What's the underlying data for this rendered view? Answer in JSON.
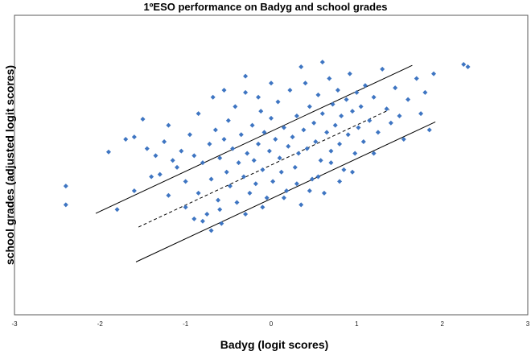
{
  "chart_data": {
    "type": "scatter",
    "title": "1ºESO performance on Badyg and school grades",
    "xlabel": "Badyg (logit scores)",
    "ylabel": "school grades (adjusted logit scores)",
    "xlim": [
      -3,
      3
    ],
    "ylim": [
      -3.2,
      3.2
    ],
    "x_ticks": [
      "-3",
      "-2",
      "-1",
      "0",
      "1",
      "2",
      "3"
    ],
    "y_ticks_shown": false,
    "grid": false,
    "legend": "none",
    "marker": "diamond",
    "marker_color": "#3e75c2",
    "line_color": "#000000",
    "regression_line": {
      "slope": 0.855,
      "intercept": 0.0,
      "x_range": [
        -1.55,
        1.38
      ],
      "style": "dashed"
    },
    "upper_bound_line": {
      "slope": 0.855,
      "intercept": 0.72,
      "x_range": [
        -2.05,
        1.65
      ],
      "style": "solid"
    },
    "lower_bound_line": {
      "slope": 0.855,
      "intercept": -0.72,
      "x_range": [
        -1.58,
        1.92
      ],
      "style": "solid"
    },
    "points": [
      [
        -2.4,
        -0.45
      ],
      [
        -2.4,
        -0.85
      ],
      [
        -1.8,
        -0.95
      ],
      [
        -1.9,
        0.28
      ],
      [
        -1.7,
        0.55
      ],
      [
        -1.6,
        0.6
      ],
      [
        -1.5,
        0.98
      ],
      [
        -1.45,
        0.35
      ],
      [
        -1.35,
        0.2
      ],
      [
        -1.3,
        -0.2
      ],
      [
        -1.25,
        0.5
      ],
      [
        -1.2,
        0.85
      ],
      [
        -1.15,
        0.1
      ],
      [
        -1.1,
        -0.05
      ],
      [
        -1.05,
        0.3
      ],
      [
        -1.0,
        -0.35
      ],
      [
        -0.95,
        0.65
      ],
      [
        -0.9,
        0.2
      ],
      [
        -0.85,
        -0.6
      ],
      [
        -0.85,
        1.1
      ],
      [
        -0.8,
        0.05
      ],
      [
        -0.75,
        -1.05
      ],
      [
        -0.72,
        0.45
      ],
      [
        -0.7,
        -0.3
      ],
      [
        -0.68,
        1.45
      ],
      [
        -0.65,
        0.75
      ],
      [
        -0.62,
        -0.75
      ],
      [
        -0.6,
        0.15
      ],
      [
        -0.58,
        -1.25
      ],
      [
        -0.55,
        0.55
      ],
      [
        -0.52,
        -0.15
      ],
      [
        -0.5,
        0.95
      ],
      [
        -0.48,
        -0.45
      ],
      [
        -0.45,
        0.35
      ],
      [
        -0.42,
        1.25
      ],
      [
        -0.4,
        -0.8
      ],
      [
        -0.38,
        0.05
      ],
      [
        -0.35,
        0.65
      ],
      [
        -0.32,
        -0.25
      ],
      [
        -0.3,
        1.55
      ],
      [
        -0.28,
        0.25
      ],
      [
        -0.25,
        -0.6
      ],
      [
        -0.22,
        0.85
      ],
      [
        -0.2,
        0.1
      ],
      [
        -0.18,
        -0.4
      ],
      [
        -0.15,
        0.45
      ],
      [
        -0.12,
        1.15
      ],
      [
        -0.1,
        -0.1
      ],
      [
        -0.08,
        0.7
      ],
      [
        -0.05,
        -0.7
      ],
      [
        -0.02,
        0.3
      ],
      [
        0.0,
        1.0
      ],
      [
        0.02,
        -0.35
      ],
      [
        0.05,
        0.55
      ],
      [
        0.08,
        1.35
      ],
      [
        0.1,
        0.15
      ],
      [
        0.12,
        -0.15
      ],
      [
        0.15,
        0.8
      ],
      [
        0.18,
        -0.55
      ],
      [
        0.2,
        0.4
      ],
      [
        0.22,
        1.6
      ],
      [
        0.25,
        0.6
      ],
      [
        0.28,
        -0.05
      ],
      [
        0.3,
        1.05
      ],
      [
        0.32,
        0.25
      ],
      [
        0.35,
        -0.85
      ],
      [
        0.38,
        0.75
      ],
      [
        0.4,
        1.75
      ],
      [
        0.42,
        0.35
      ],
      [
        0.45,
        1.25
      ],
      [
        0.48,
        -0.3
      ],
      [
        0.5,
        0.9
      ],
      [
        0.52,
        0.5
      ],
      [
        0.55,
        1.5
      ],
      [
        0.58,
        0.1
      ],
      [
        0.6,
        1.1
      ],
      [
        0.62,
        -0.6
      ],
      [
        0.65,
        0.7
      ],
      [
        0.68,
        1.85
      ],
      [
        0.7,
        0.3
      ],
      [
        0.72,
        1.3
      ],
      [
        0.75,
        0.85
      ],
      [
        0.78,
        1.6
      ],
      [
        0.8,
        0.45
      ],
      [
        0.82,
        1.05
      ],
      [
        0.85,
        -0.1
      ],
      [
        0.88,
        1.4
      ],
      [
        0.9,
        0.65
      ],
      [
        0.92,
        1.95
      ],
      [
        0.95,
        1.15
      ],
      [
        0.98,
        0.25
      ],
      [
        1.0,
        1.55
      ],
      [
        1.02,
        0.8
      ],
      [
        1.05,
        1.25
      ],
      [
        1.08,
        0.5
      ],
      [
        1.1,
        1.7
      ],
      [
        1.15,
        0.95
      ],
      [
        1.2,
        1.45
      ],
      [
        1.25,
        0.7
      ],
      [
        1.3,
        2.05
      ],
      [
        1.35,
        1.2
      ],
      [
        1.4,
        0.9
      ],
      [
        1.45,
        1.65
      ],
      [
        1.5,
        1.05
      ],
      [
        1.55,
        0.55
      ],
      [
        1.6,
        1.4
      ],
      [
        1.7,
        1.85
      ],
      [
        1.75,
        1.1
      ],
      [
        1.8,
        1.55
      ],
      [
        1.85,
        0.75
      ],
      [
        1.9,
        1.95
      ],
      [
        2.25,
        2.15
      ],
      [
        2.3,
        2.1
      ],
      [
        -0.9,
        -1.15
      ],
      [
        -0.8,
        -1.2
      ],
      [
        -0.7,
        -1.4
      ],
      [
        -0.6,
        -0.95
      ],
      [
        -0.3,
        -1.05
      ],
      [
        -0.1,
        -0.9
      ],
      [
        0.15,
        -0.7
      ],
      [
        0.3,
        -0.4
      ],
      [
        0.55,
        -0.25
      ],
      [
        0.8,
        -0.35
      ],
      [
        0.95,
        -0.15
      ],
      [
        1.2,
        0.25
      ],
      [
        -1.6,
        -0.55
      ],
      [
        -1.4,
        -0.25
      ],
      [
        -1.2,
        -0.65
      ],
      [
        -1.0,
        -0.9
      ],
      [
        -0.3,
        1.9
      ],
      [
        0.0,
        1.75
      ],
      [
        0.35,
        2.1
      ],
      [
        0.6,
        2.2
      ],
      [
        -0.55,
        1.6
      ],
      [
        -0.15,
        1.45
      ],
      [
        0.7,
        0.05
      ],
      [
        0.45,
        -0.55
      ]
    ]
  }
}
